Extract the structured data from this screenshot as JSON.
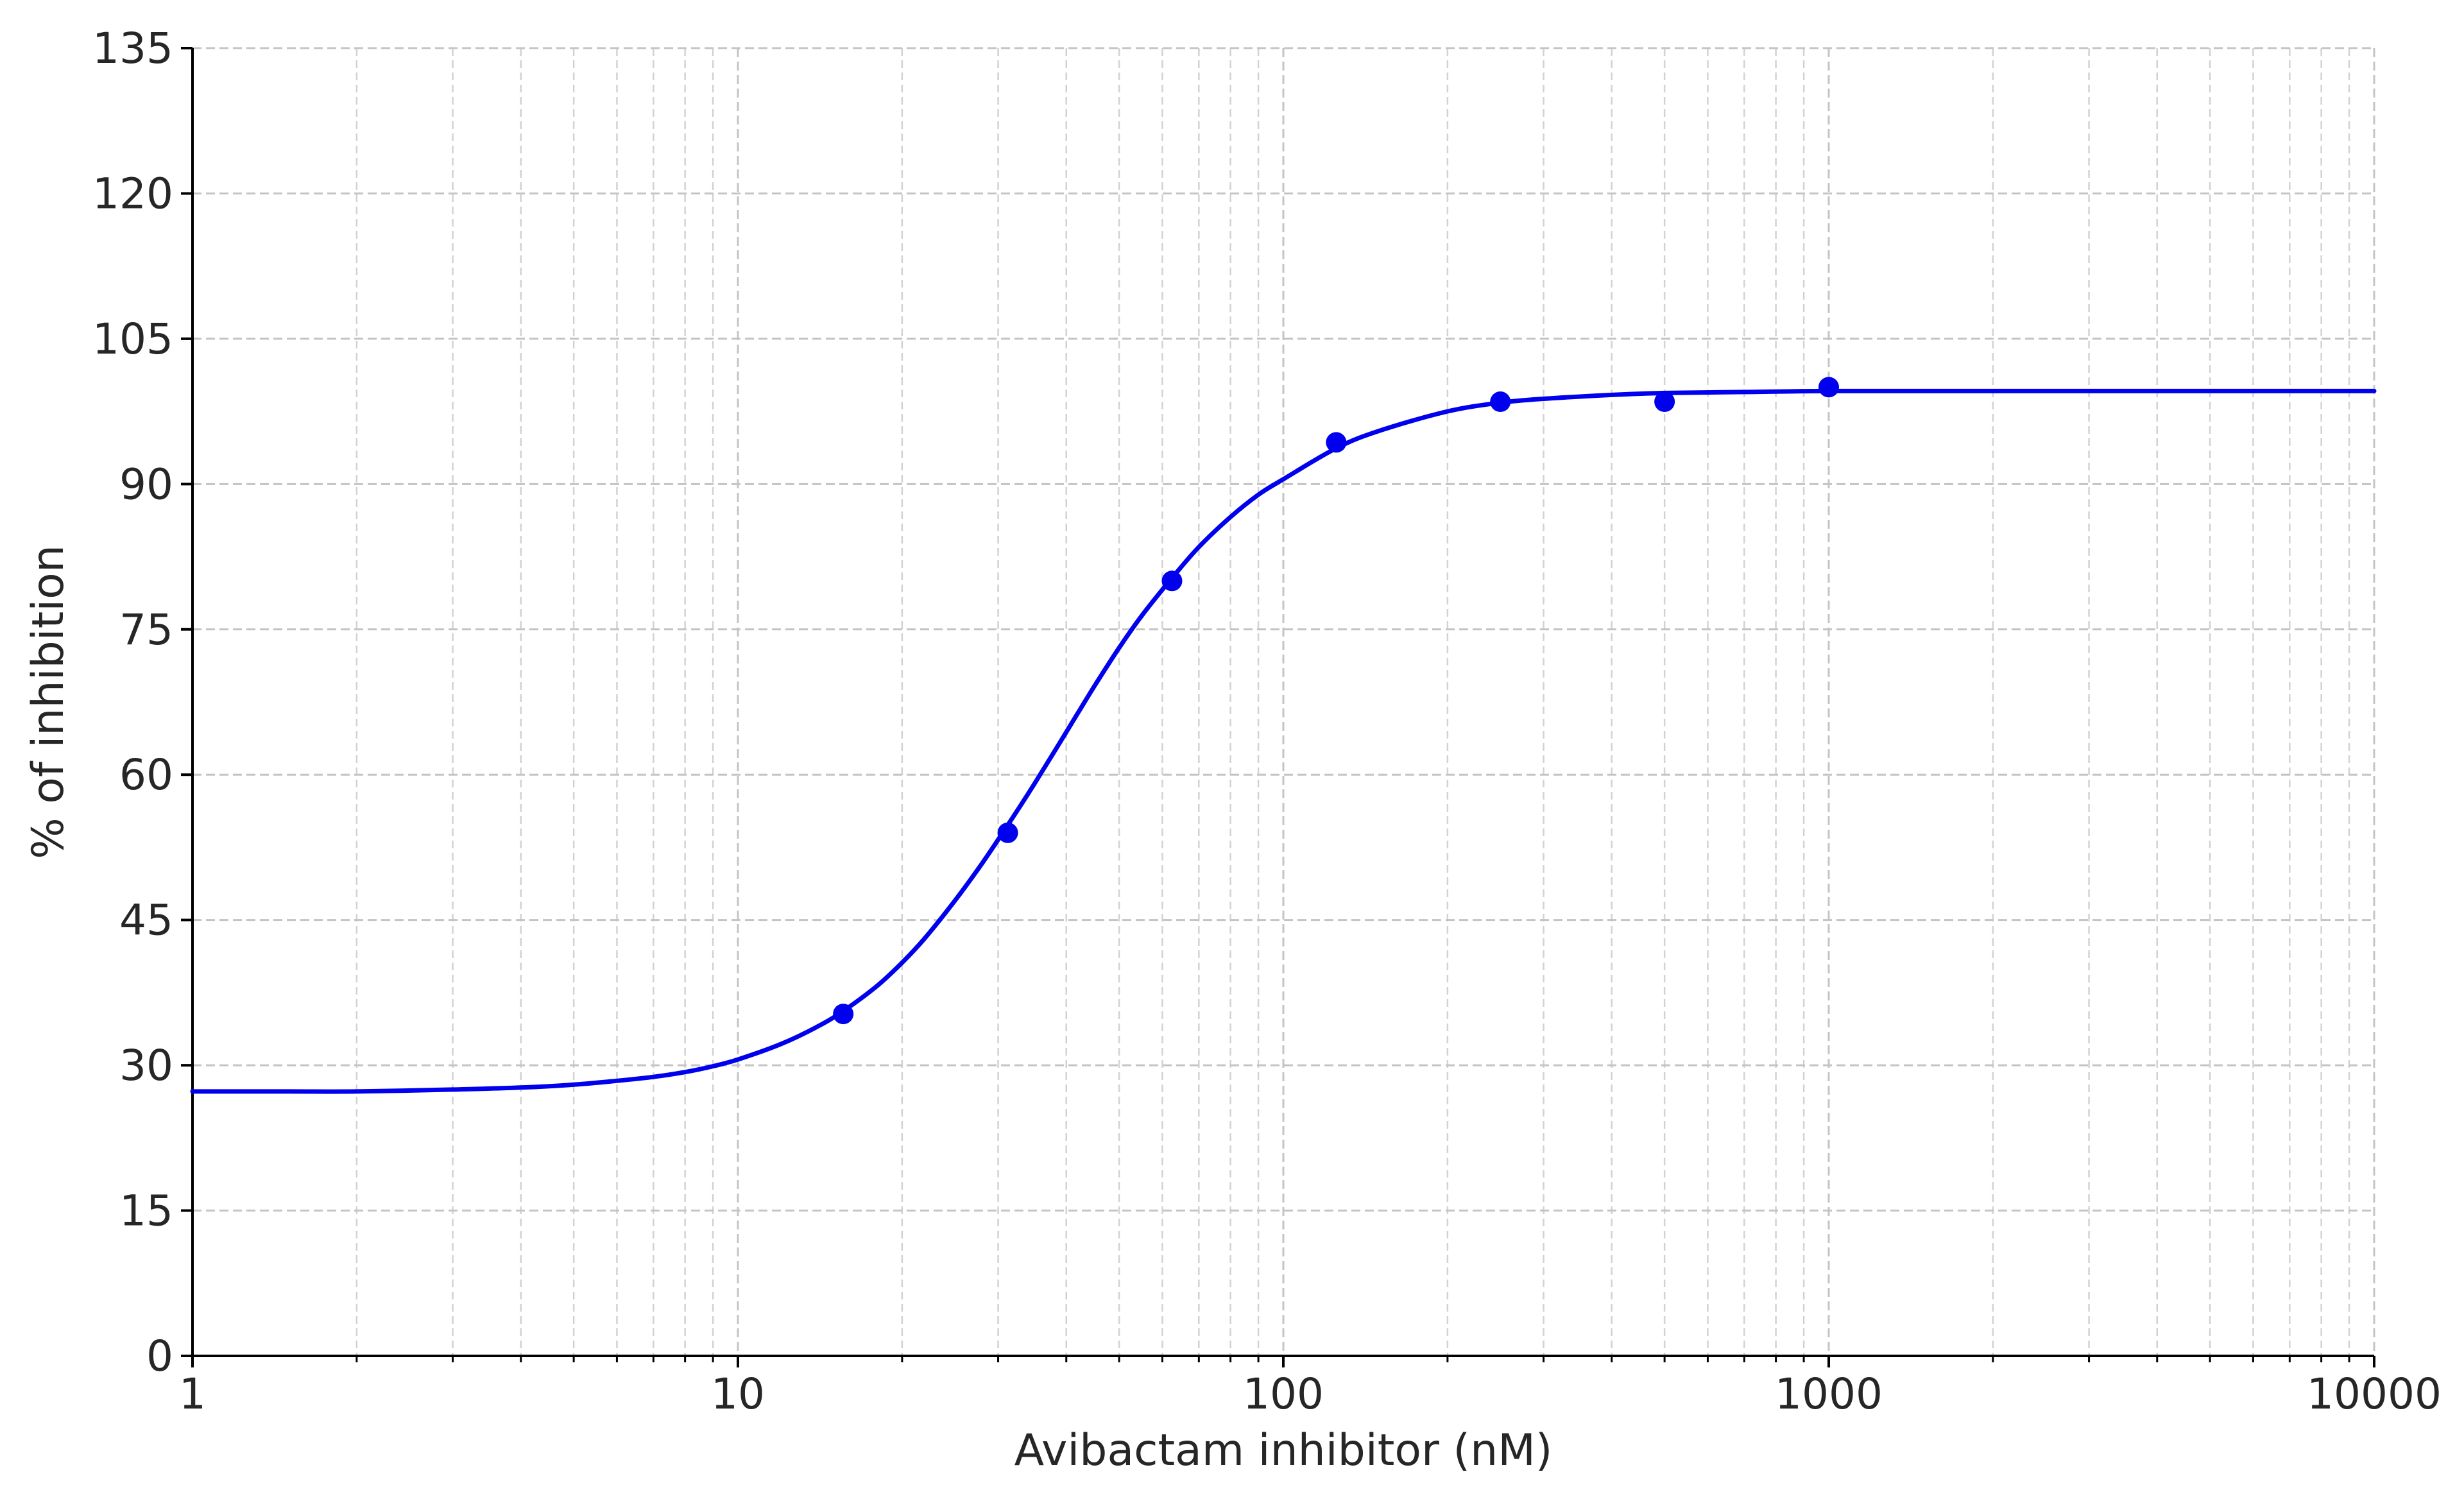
{
  "chart_data": {
    "type": "scatter",
    "title": "",
    "xlabel": "Avibactam inhibitor (nM)",
    "ylabel": "% of inhibition",
    "x_scale": "log",
    "xlim": [
      1,
      10000
    ],
    "ylim": [
      0,
      135
    ],
    "x_ticks": [
      1,
      10,
      100,
      1000,
      10000
    ],
    "x_tick_labels": [
      "1",
      "10",
      "100",
      "1000",
      "10000"
    ],
    "y_ticks": [
      0,
      15,
      30,
      45,
      60,
      75,
      90,
      105,
      120,
      135
    ],
    "y_tick_labels": [
      "0",
      "15",
      "30",
      "45",
      "60",
      "75",
      "90",
      "105",
      "120",
      "135"
    ],
    "grid": true,
    "color": "#0000ee",
    "series": [
      {
        "kind": "points",
        "x": [
          15.6,
          31.25,
          62.5,
          125,
          250,
          500,
          1000
        ],
        "y": [
          35.3,
          54.0,
          80.0,
          94.3,
          98.5,
          98.5,
          100.0
        ]
      },
      {
        "kind": "fitted_curve",
        "x": [
          1,
          1.5,
          2,
          3,
          4,
          5,
          6,
          7,
          8,
          9,
          10,
          12,
          14,
          15.6,
          18,
          20,
          22,
          25,
          28,
          31.25,
          35,
          40,
          45,
          50,
          55,
          62.5,
          70,
          80,
          90,
          100,
          125,
          150,
          200,
          250,
          300,
          400,
          500,
          700,
          1000,
          2000,
          5000,
          10000
        ],
        "y": [
          27.3,
          27.3,
          27.3,
          27.5,
          27.7,
          28.0,
          28.4,
          28.8,
          29.3,
          29.9,
          30.6,
          32.2,
          34.0,
          35.6,
          38.2,
          40.6,
          43.1,
          47.0,
          50.8,
          54.8,
          59.1,
          64.4,
          69.1,
          73.1,
          76.4,
          80.3,
          83.5,
          86.6,
          88.9,
          90.5,
          93.7,
          95.5,
          97.5,
          98.4,
          98.8,
          99.2,
          99.4,
          99.5,
          99.6,
          99.6,
          99.6,
          99.6
        ]
      }
    ]
  }
}
